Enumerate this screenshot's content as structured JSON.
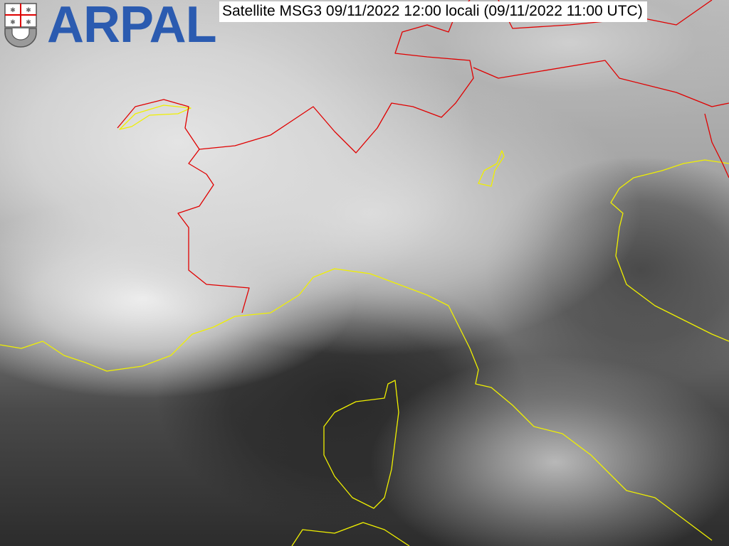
{
  "title": "Satellite MSG3 09/11/2022 12:00 locali (09/11/2022 11:00 UTC)",
  "logo": {
    "text": "ARPAL",
    "icon": "liguria-shield-icon"
  },
  "colors": {
    "logo": "#2b5bb0",
    "borders": "#e00000",
    "coastlines": "#f0f000"
  }
}
